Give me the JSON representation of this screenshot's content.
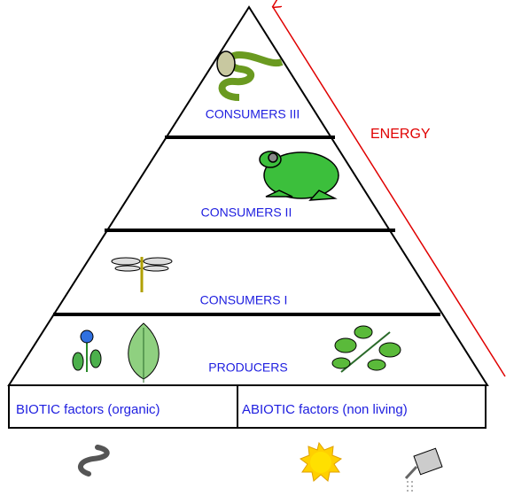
{
  "arrow": {
    "label": "ENERGY"
  },
  "levels": [
    "CONSUMERS III",
    "CONSUMERS II",
    "CONSUMERS I",
    "PRODUCERS"
  ],
  "base": {
    "biotic": "BIOTIC factors (organic)",
    "abiotic": "ABIOTIC factors (non living)"
  }
}
